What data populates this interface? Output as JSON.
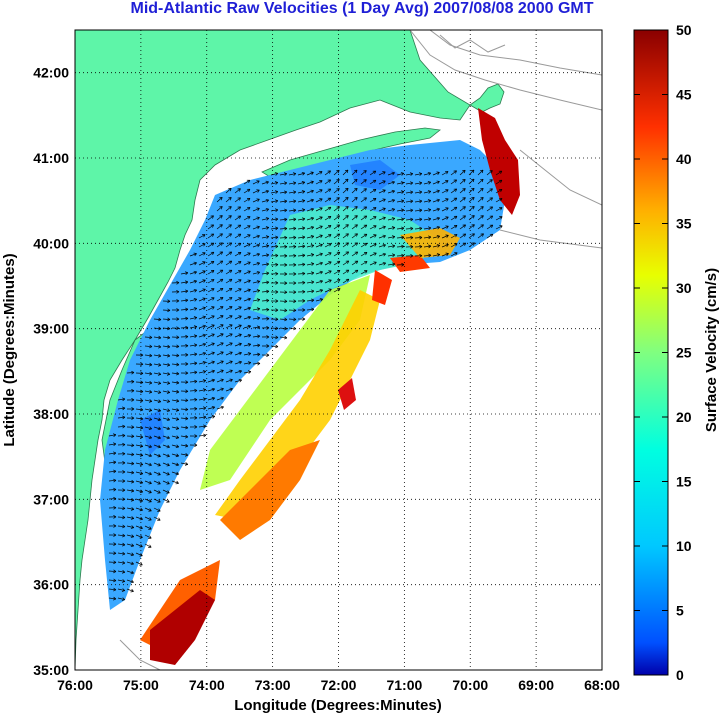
{
  "title": "Mid-Atlantic Raw Velocities (1 Day Avg) 2007/08/08 2000 GMT",
  "x_axis": {
    "label": "Longitude (Degrees:Minutes)",
    "ticks": [
      "76:00",
      "75:00",
      "74:00",
      "73:00",
      "72:00",
      "71:00",
      "70:00",
      "69:00",
      "68:00"
    ]
  },
  "y_axis": {
    "label": "Latitude (Degrees:Minutes)",
    "ticks": [
      "35:00",
      "36:00",
      "37:00",
      "38:00",
      "39:00",
      "40:00",
      "41:00",
      "42:00"
    ]
  },
  "colorbar": {
    "label": "Surface Velocity (cm/s)",
    "ticks": [
      "0",
      "5",
      "10",
      "15",
      "20",
      "25",
      "30",
      "35",
      "40",
      "45",
      "50"
    ],
    "range": [
      0,
      50
    ],
    "colormap": "jet"
  },
  "colors": {
    "land": "#5ef5a8",
    "title": "#1f1fd6",
    "grid": "#000000",
    "bathymetry": "#9a9a9a"
  },
  "map": {
    "lon_range": [
      -76,
      -68
    ],
    "lat_range": [
      35,
      42.5
    ],
    "grid": "dotted"
  }
}
